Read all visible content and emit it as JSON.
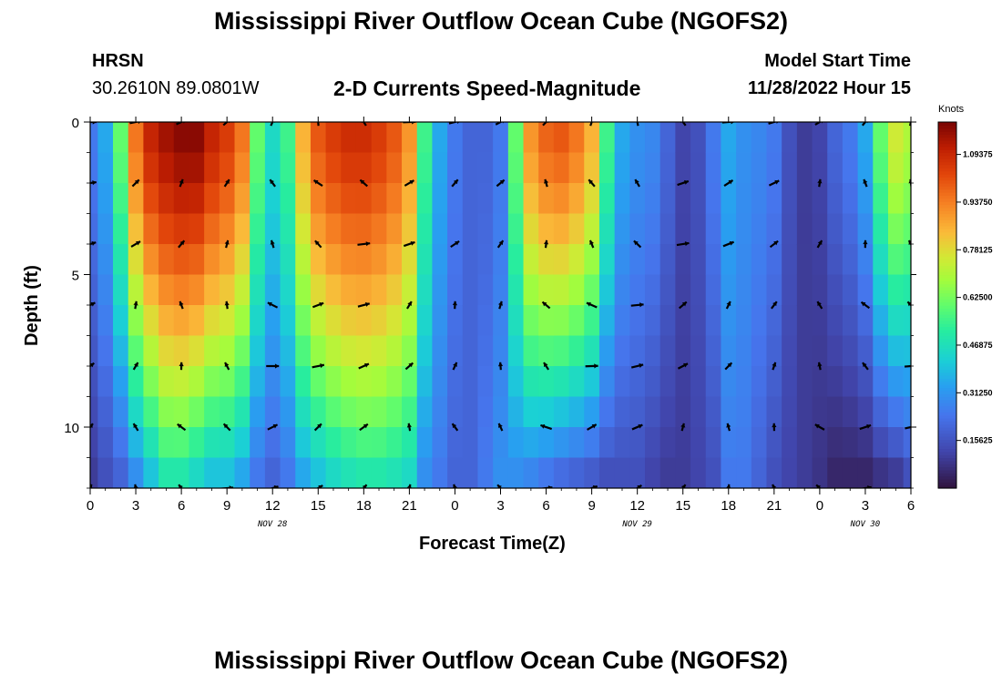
{
  "header": {
    "title": "Mississippi River Outflow Ocean Cube (NGOFS2)",
    "station_name": "HRSN",
    "station_coords": "30.2610N  89.0801W",
    "subtitle": "2-D Currents Speed-Magnitude",
    "model_start_label": "Model Start Time",
    "model_start_value": "11/28/2022 Hour 15"
  },
  "footer": {
    "title_repeat": "Mississippi River Outflow Ocean Cube (NGOFS2)"
  },
  "chart_data": {
    "type": "heatmap",
    "title": "2-D Currents Speed-Magnitude",
    "xlabel": "Forecast Time(Z)",
    "ylabel": "Depth (ft)",
    "xlim": [
      0,
      54
    ],
    "ylim": [
      12,
      0
    ],
    "x_ticks": [
      0,
      3,
      6,
      9,
      12,
      15,
      18,
      21,
      24,
      27,
      30,
      33,
      36,
      39,
      42,
      45,
      48,
      51,
      54
    ],
    "x_tick_labels": [
      "0",
      "3",
      "6",
      "9",
      "12",
      "15",
      "18",
      "21",
      "0",
      "3",
      "6",
      "9",
      "12",
      "15",
      "18",
      "21",
      "0",
      "3",
      "6"
    ],
    "y_ticks": [
      0,
      5,
      10
    ],
    "y_tick_labels": [
      "0",
      "5",
      "10"
    ],
    "date_labels": [
      {
        "hour": 12,
        "text": "NOV 28"
      },
      {
        "hour": 36,
        "text": "NOV 29"
      },
      {
        "hour": 51,
        "text": "NOV 30"
      }
    ],
    "colorbar": {
      "unit": "Knots",
      "min": 0.0,
      "max": 1.2,
      "ticks": [
        0.15625,
        0.3125,
        0.46875,
        0.625,
        0.78125,
        0.9375,
        1.09375
      ],
      "tick_labels": [
        "0.15625",
        "0.31250",
        "0.46875",
        "0.62500",
        "0.78125",
        "0.93750",
        "1.09375"
      ]
    },
    "speed_profile": {
      "hours": [
        0,
        1,
        2,
        3,
        4,
        5,
        6,
        7,
        8,
        9,
        10,
        11,
        12,
        13,
        14,
        15,
        16,
        17,
        18,
        19,
        20,
        21,
        22,
        23,
        24,
        25,
        26,
        27,
        28,
        29,
        30,
        31,
        32,
        33,
        34,
        35,
        36,
        37,
        38,
        39,
        40,
        41,
        42,
        43,
        44,
        45,
        46,
        47,
        48,
        49,
        50,
        51,
        52,
        53,
        54
      ],
      "surface": [
        0.25,
        0.35,
        0.6,
        0.95,
        1.1,
        1.15,
        1.18,
        1.18,
        1.1,
        1.05,
        0.95,
        0.6,
        0.45,
        0.55,
        0.85,
        1.0,
        1.05,
        1.08,
        1.08,
        1.05,
        1.0,
        0.9,
        0.55,
        0.35,
        0.25,
        0.2,
        0.2,
        0.25,
        0.6,
        0.9,
        0.98,
        1.0,
        0.95,
        0.85,
        0.55,
        0.35,
        0.3,
        0.28,
        0.2,
        0.12,
        0.15,
        0.25,
        0.35,
        0.3,
        0.28,
        0.25,
        0.15,
        0.1,
        0.12,
        0.2,
        0.25,
        0.35,
        0.6,
        0.75,
        0.7
      ],
      "bottom": [
        0.1,
        0.15,
        0.2,
        0.3,
        0.4,
        0.5,
        0.5,
        0.45,
        0.4,
        0.4,
        0.35,
        0.25,
        0.2,
        0.25,
        0.35,
        0.4,
        0.45,
        0.48,
        0.5,
        0.5,
        0.48,
        0.45,
        0.3,
        0.25,
        0.2,
        0.2,
        0.25,
        0.3,
        0.3,
        0.28,
        0.25,
        0.22,
        0.2,
        0.18,
        0.15,
        0.15,
        0.15,
        0.12,
        0.1,
        0.1,
        0.12,
        0.15,
        0.25,
        0.25,
        0.2,
        0.15,
        0.12,
        0.1,
        0.08,
        0.05,
        0.05,
        0.05,
        0.08,
        0.1,
        0.15
      ]
    },
    "vector_hours": [
      0,
      3,
      6,
      9,
      12,
      15,
      18,
      21,
      24,
      27,
      30,
      33,
      36,
      39,
      42,
      45,
      48,
      51,
      54
    ],
    "vector_depths": [
      0,
      2,
      4,
      6,
      8,
      10,
      12
    ]
  }
}
